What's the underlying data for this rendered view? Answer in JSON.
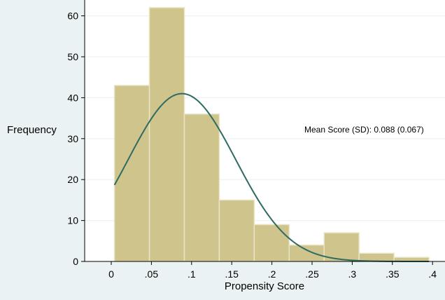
{
  "chart_data": {
    "type": "bar",
    "subtype": "histogram",
    "xlabel": "Propensity Score",
    "ylabel": "Frequency",
    "bins": [
      {
        "start": 0.004,
        "end": 0.0475,
        "value": 43
      },
      {
        "start": 0.0475,
        "end": 0.091,
        "value": 62
      },
      {
        "start": 0.091,
        "end": 0.1345,
        "value": 36
      },
      {
        "start": 0.1345,
        "end": 0.178,
        "value": 15
      },
      {
        "start": 0.178,
        "end": 0.2215,
        "value": 9
      },
      {
        "start": 0.2215,
        "end": 0.265,
        "value": 4
      },
      {
        "start": 0.265,
        "end": 0.3085,
        "value": 7
      },
      {
        "start": 0.3085,
        "end": 0.352,
        "value": 2
      },
      {
        "start": 0.352,
        "end": 0.3955,
        "value": 1
      }
    ],
    "xlim": [
      -0.012,
      0.404
    ],
    "ylim": [
      0,
      64
    ],
    "x_ticks": [
      0,
      0.05,
      0.1,
      0.15,
      0.2,
      0.25,
      0.3,
      0.35,
      0.4
    ],
    "x_tick_labels": [
      "0",
      ".05",
      ".1",
      ".15",
      ".2",
      ".25",
      ".3",
      ".35",
      ".4"
    ],
    "y_ticks": [
      0,
      10,
      20,
      30,
      40,
      50,
      60
    ],
    "y_tick_labels": [
      "0",
      "10",
      "20",
      "30",
      "40",
      "50",
      "60"
    ],
    "grid": "horizontal",
    "normal_curve": {
      "mean": 0.088,
      "sd": 0.067,
      "x_start": 0.004,
      "x_end": 0.3955,
      "peak": 41,
      "color": "#2e6b63"
    },
    "annotation": "Mean Score (SD): 0.088 (0.067)",
    "colors": {
      "bar_fill": "#cfc48c",
      "bar_stroke": "#e9e4c6",
      "plot_bg": "#ffffff",
      "outer_bg": "#eaf2f3",
      "grid": "#eaf2f3"
    }
  }
}
